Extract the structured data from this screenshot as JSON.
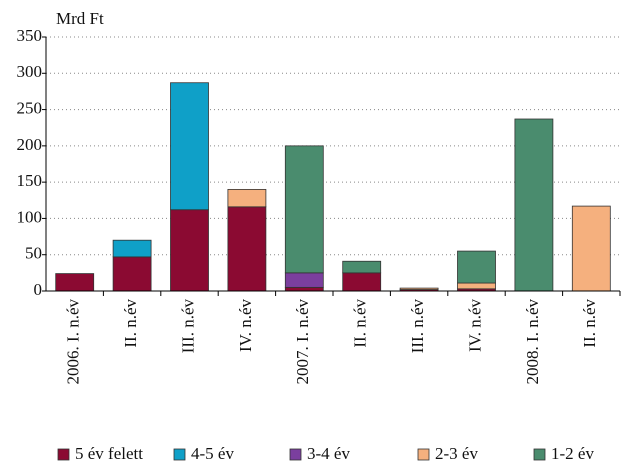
{
  "chart_data": {
    "type": "stacked_bar",
    "y_label": "Mrd Ft",
    "categories": [
      "2006. I. n.év",
      "II. n.év",
      "III. n.év",
      "IV. n.év",
      "2007. I. n.év",
      "II. n.év",
      "III. n.év",
      "IV. n.év",
      "2008. I. n.év",
      "II. n.év"
    ],
    "series": [
      {
        "name": "5 év felett",
        "color": "#8b0a32",
        "values": [
          24,
          47,
          112,
          116,
          5,
          25,
          2,
          3,
          0,
          0
        ]
      },
      {
        "name": "4-5 év",
        "color": "#0fa0c8",
        "values": [
          0,
          23,
          175,
          0,
          0,
          0,
          0,
          0,
          0,
          0
        ]
      },
      {
        "name": "3-4 év",
        "color": "#7b3f9e",
        "values": [
          0,
          0,
          0,
          0,
          20,
          0,
          0,
          0,
          0,
          0
        ]
      },
      {
        "name": "2-3 év",
        "color": "#f5b07e",
        "values": [
          0,
          0,
          0,
          24,
          0,
          0,
          2,
          8,
          0,
          117
        ]
      },
      {
        "name": "1-2 év",
        "color": "#4a8c6e",
        "values": [
          0,
          0,
          0,
          0,
          175,
          16,
          0,
          44,
          237,
          0
        ]
      }
    ],
    "ylim": [
      0,
      350
    ],
    "yticks": [
      0,
      50,
      100,
      150,
      200,
      250,
      300,
      350
    ],
    "grid": true
  }
}
